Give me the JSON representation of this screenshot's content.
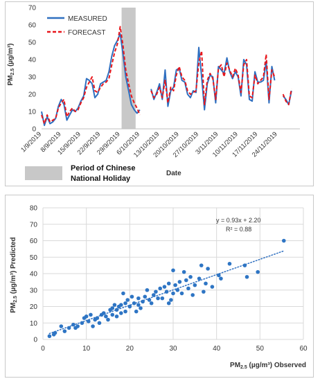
{
  "chart_data": [
    {
      "type": "line",
      "ylabel": "PM2.5 (µg/m³)",
      "ylabel_main": "PM",
      "ylabel_sub": "2.5",
      "ylabel_unit": " (µg/m³)",
      "xlabel": "Date",
      "ylim": [
        0,
        70
      ],
      "yticks": [
        0,
        10,
        20,
        30,
        40,
        50,
        60,
        70
      ],
      "grid": false,
      "legend_position": "top-left",
      "x_tick_labels": [
        "1/9/2019",
        "8/9/2019",
        "15/9/2019",
        "22/9/2019",
        "29/9/2019",
        "6/10/2019",
        "13/10/2019",
        "20/10/2019",
        "27/10/2019",
        "3/11/2019",
        "10/11/2019",
        "17/11/2019",
        "24/11/2019"
      ],
      "x_tick_day_index": [
        0,
        7,
        14,
        21,
        28,
        35,
        42,
        49,
        56,
        63,
        70,
        77,
        84
      ],
      "day_count": 93,
      "holiday_label": "Period of Chinese National Holiday",
      "holiday_label_line1": "Period of Chinese",
      "holiday_label_line2": "National Holiday",
      "holiday_start_day": 28.5,
      "holiday_end_day": 33.5,
      "series": [
        {
          "name": "MEASURED",
          "color": "#2e6fc0",
          "dash": false,
          "segments": [
            [
              [
                0,
                10
              ],
              [
                1,
                2
              ],
              [
                2,
                7
              ],
              [
                3,
                3
              ],
              [
                4,
                4
              ],
              [
                5,
                6
              ],
              [
                6,
                13
              ],
              [
                7,
                17
              ],
              [
                8,
                14
              ],
              [
                9,
                5
              ],
              [
                10,
                8
              ],
              [
                11,
                11
              ],
              [
                12,
                10
              ],
              [
                13,
                12
              ],
              [
                14,
                16
              ],
              [
                15,
                19
              ],
              [
                16,
                29
              ],
              [
                17,
                28
              ],
              [
                18,
                26
              ],
              [
                19,
                18
              ],
              [
                20,
                20
              ],
              [
                21,
                26
              ],
              [
                22,
                27
              ],
              [
                23,
                28
              ],
              [
                24,
                33
              ],
              [
                25,
                42
              ],
              [
                26,
                48
              ],
              [
                27,
                51
              ],
              [
                28,
                55
              ],
              [
                29,
                43
              ],
              [
                30,
                30
              ],
              [
                31,
                22
              ],
              [
                32,
                14
              ],
              [
                33,
                11
              ],
              [
                34,
                9
              ],
              [
                35,
                11
              ]
            ],
            [
              [
                39,
                23
              ],
              [
                40,
                17
              ],
              [
                41,
                21
              ],
              [
                42,
                26
              ],
              [
                43,
                17
              ],
              [
                44,
                34
              ],
              [
                45,
                13
              ],
              [
                46,
                22
              ],
              [
                47,
                24
              ],
              [
                48,
                34
              ],
              [
                49,
                35
              ],
              [
                50,
                28
              ],
              [
                51,
                27
              ],
              [
                52,
                20
              ],
              [
                53,
                18
              ],
              [
                54,
                22
              ],
              [
                55,
                21
              ],
              [
                56,
                47
              ],
              [
                57,
                30
              ],
              [
                58,
                11
              ],
              [
                59,
                26
              ],
              [
                60,
                31
              ],
              [
                61,
                30
              ],
              [
                62,
                15
              ],
              [
                63,
                36
              ],
              [
                64,
                34
              ],
              [
                65,
                32
              ],
              [
                66,
                41
              ],
              [
                67,
                33
              ],
              [
                68,
                29
              ],
              [
                69,
                33
              ],
              [
                70,
                30
              ],
              [
                71,
                19
              ],
              [
                72,
                40
              ],
              [
                73,
                37
              ],
              [
                74,
                17
              ],
              [
                75,
                16
              ],
              [
                76,
                33
              ],
              [
                77,
                27
              ],
              [
                78,
                27
              ],
              [
                79,
                28
              ],
              [
                80,
                39
              ],
              [
                81,
                15
              ],
              [
                82,
                36
              ],
              [
                83,
                28
              ]
            ],
            [
              [
                86,
                19
              ],
              [
                87,
                17
              ],
              [
                88,
                14
              ],
              [
                89,
                22
              ]
            ]
          ]
        },
        {
          "name": "FORECAST",
          "color": "#e8161b",
          "dash": true,
          "segments": [
            [
              [
                0,
                8
              ],
              [
                1,
                3
              ],
              [
                2,
                8
              ],
              [
                3,
                4
              ],
              [
                4,
                5
              ],
              [
                5,
                6
              ],
              [
                6,
                12
              ],
              [
                7,
                15
              ],
              [
                8,
                17
              ],
              [
                9,
                7
              ],
              [
                10,
                10
              ],
              [
                11,
                12
              ],
              [
                12,
                10
              ],
              [
                13,
                11
              ],
              [
                14,
                15
              ],
              [
                15,
                18
              ],
              [
                16,
                24
              ],
              [
                17,
                27
              ],
              [
                18,
                30
              ],
              [
                19,
                22
              ],
              [
                20,
                21
              ],
              [
                21,
                24
              ],
              [
                22,
                26
              ],
              [
                23,
                27
              ],
              [
                24,
                29
              ],
              [
                25,
                37
              ],
              [
                26,
                44
              ],
              [
                27,
                49
              ],
              [
                28,
                59
              ],
              [
                29,
                48
              ],
              [
                30,
                34
              ],
              [
                31,
                26
              ],
              [
                32,
                19
              ],
              [
                33,
                15
              ],
              [
                34,
                12
              ],
              [
                35,
                8
              ]
            ],
            [
              [
                39,
                22
              ],
              [
                40,
                18
              ],
              [
                41,
                20
              ],
              [
                42,
                24
              ],
              [
                43,
                18
              ],
              [
                44,
                28
              ],
              [
                45,
                15
              ],
              [
                46,
                24
              ],
              [
                47,
                22
              ],
              [
                48,
                31
              ],
              [
                49,
                36
              ],
              [
                50,
                30
              ],
              [
                51,
                28
              ],
              [
                52,
                22
              ],
              [
                53,
                20
              ],
              [
                54,
                21
              ],
              [
                55,
                22
              ],
              [
                56,
                38
              ],
              [
                57,
                45
              ],
              [
                58,
                14
              ],
              [
                59,
                28
              ],
              [
                60,
                32
              ],
              [
                61,
                29
              ],
              [
                62,
                17
              ],
              [
                63,
                35
              ],
              [
                64,
                37
              ],
              [
                65,
                30
              ],
              [
                66,
                38
              ],
              [
                67,
                34
              ],
              [
                68,
                30
              ],
              [
                69,
                35
              ],
              [
                70,
                31
              ],
              [
                71,
                21
              ],
              [
                72,
                37
              ],
              [
                73,
                40
              ],
              [
                74,
                19
              ],
              [
                75,
                18
              ],
              [
                76,
                31
              ],
              [
                77,
                26
              ],
              [
                78,
                28
              ],
              [
                79,
                30
              ],
              [
                80,
                43
              ],
              [
                81,
                17
              ],
              [
                82,
                34
              ],
              [
                83,
                30
              ]
            ],
            [
              [
                86,
                20
              ],
              [
                87,
                16
              ],
              [
                88,
                14
              ],
              [
                89,
                23
              ]
            ]
          ]
        }
      ],
      "colors": {
        "measured": "#2e6fc0",
        "forecast": "#e8161b",
        "holiday": "#c8c8c8"
      }
    },
    {
      "type": "scatter",
      "ylabel": "PM2.5 (µg/m³) Predicted",
      "ylabel_main": "PM",
      "ylabel_sub": "2.5",
      "ylabel_unit": " (µg/m³) Predicted",
      "xlabel": "PM2.5 (µg/m³) Observed",
      "xlabel_main": "PM",
      "xlabel_sub": "2.5",
      "xlabel_unit": " (µg/m³) Observed",
      "xlim": [
        0,
        60
      ],
      "ylim": [
        0,
        80
      ],
      "xticks": [
        0,
        10,
        20,
        30,
        40,
        50,
        60
      ],
      "yticks": [
        0,
        10,
        20,
        30,
        40,
        50,
        60,
        70,
        80
      ],
      "grid": true,
      "equation": "y = 0.93x + 2.20",
      "r_squared": "R² = 0.88",
      "trendline": {
        "slope": 0.93,
        "intercept": 2.2,
        "x_range": [
          1.5,
          55.5
        ],
        "color": "#2e6fc0",
        "style": "dotted"
      },
      "point_color": "#2e75c4",
      "points": [
        [
          1.5,
          2
        ],
        [
          2.5,
          3
        ],
        [
          2.8,
          4
        ],
        [
          4.2,
          8
        ],
        [
          5,
          5
        ],
        [
          6,
          7
        ],
        [
          7,
          9
        ],
        [
          7.5,
          7
        ],
        [
          8,
          8
        ],
        [
          9,
          10
        ],
        [
          9.5,
          13
        ],
        [
          10,
          14
        ],
        [
          10.5,
          11
        ],
        [
          11,
          15
        ],
        [
          11.5,
          8
        ],
        [
          12,
          12
        ],
        [
          12.5,
          13
        ],
        [
          13,
          10
        ],
        [
          13.5,
          15
        ],
        [
          14,
          16
        ],
        [
          14.5,
          14
        ],
        [
          15,
          12
        ],
        [
          15.5,
          18
        ],
        [
          16,
          15
        ],
        [
          16,
          19
        ],
        [
          16.5,
          21
        ],
        [
          17,
          14
        ],
        [
          17,
          18
        ],
        [
          17.5,
          20
        ],
        [
          18,
          21
        ],
        [
          18,
          16
        ],
        [
          18.5,
          28
        ],
        [
          19,
          22
        ],
        [
          19,
          17
        ],
        [
          19.5,
          24
        ],
        [
          20,
          20
        ],
        [
          20.5,
          26
        ],
        [
          21,
          22
        ],
        [
          21.5,
          17
        ],
        [
          22,
          21
        ],
        [
          22,
          25
        ],
        [
          22.5,
          19
        ],
        [
          23,
          23
        ],
        [
          23.5,
          26
        ],
        [
          24,
          30
        ],
        [
          24.5,
          24
        ],
        [
          25,
          22
        ],
        [
          25.5,
          27
        ],
        [
          26,
          29
        ],
        [
          26.5,
          25
        ],
        [
          27,
          31
        ],
        [
          27.5,
          25
        ],
        [
          28,
          32
        ],
        [
          28.5,
          29
        ],
        [
          29,
          22
        ],
        [
          29,
          34
        ],
        [
          29.5,
          24
        ],
        [
          30,
          42
        ],
        [
          30,
          28
        ],
        [
          30.5,
          33
        ],
        [
          31,
          30
        ],
        [
          31.5,
          35
        ],
        [
          32,
          28
        ],
        [
          32.5,
          41
        ],
        [
          33,
          36
        ],
        [
          33.5,
          31
        ],
        [
          34,
          38
        ],
        [
          34.5,
          27
        ],
        [
          35,
          33
        ],
        [
          36,
          37
        ],
        [
          36.5,
          45
        ],
        [
          37,
          29
        ],
        [
          37.5,
          34
        ],
        [
          38,
          43
        ],
        [
          39,
          32
        ],
        [
          40.5,
          39
        ],
        [
          41,
          37
        ],
        [
          43,
          46
        ],
        [
          46.5,
          45
        ],
        [
          47,
          38
        ],
        [
          49.5,
          41
        ],
        [
          55.5,
          60
        ]
      ]
    }
  ]
}
